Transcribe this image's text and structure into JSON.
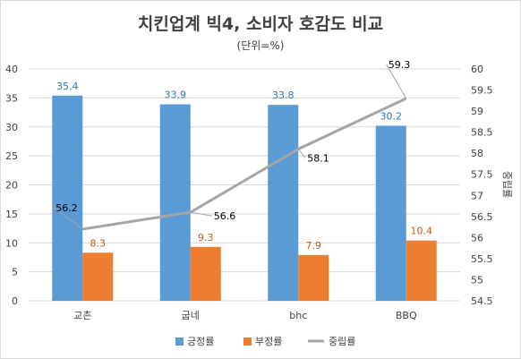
{
  "chart_data": {
    "type": "bar",
    "title": "치킨업계 빅4, 소비자 호감도 비교",
    "subtitle": "(단위=%)",
    "categories": [
      "교촌",
      "굽네",
      "bhc",
      "BBQ"
    ],
    "series": [
      {
        "name": "긍정률",
        "type": "bar",
        "axis": "left",
        "color": "#5b9bd5",
        "label_color": "#2e75b6",
        "values": [
          35.4,
          33.9,
          33.8,
          30.2
        ],
        "labels": [
          "35.4",
          "33.9",
          "33.8",
          "30.2"
        ]
      },
      {
        "name": "부정률",
        "type": "bar",
        "axis": "left",
        "color": "#ed7d31",
        "label_color": "#c55a11",
        "values": [
          8.3,
          9.3,
          7.9,
          10.4
        ],
        "labels": [
          "8.3",
          "9.3",
          "7.9",
          "10.4"
        ]
      },
      {
        "name": "중립률",
        "type": "line",
        "axis": "right",
        "color": "#a5a5a5",
        "label_color": "#000000",
        "values": [
          56.2,
          56.6,
          58.1,
          59.3
        ],
        "labels": [
          "56.2",
          "56.6",
          "58.1",
          "59.3"
        ]
      }
    ],
    "ylim": [
      0,
      40
    ],
    "yticks": [
      "0",
      "5",
      "10",
      "15",
      "20",
      "25",
      "30",
      "35",
      "40"
    ],
    "y2lim": [
      54.5,
      60
    ],
    "y2ticks": [
      "54.5",
      "55",
      "55.5",
      "56",
      "56.5",
      "57",
      "57.5",
      "58",
      "58.5",
      "59",
      "59.5",
      "60"
    ],
    "y2label": "중립률",
    "grid": true,
    "legend_position": "bottom"
  }
}
